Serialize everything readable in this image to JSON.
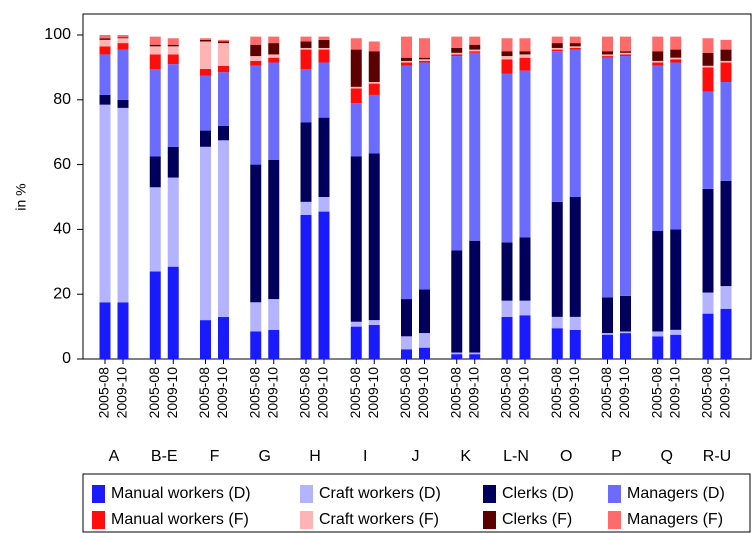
{
  "chart_data": {
    "type": "stacked_bar",
    "ylabel": "in %",
    "ylim": [
      0,
      100
    ],
    "yticks": [
      0,
      20,
      40,
      60,
      80,
      100
    ],
    "groups": [
      "A",
      "B-E",
      "F",
      "G",
      "H",
      "I",
      "J",
      "K",
      "L-N",
      "O",
      "P",
      "Q",
      "R-U"
    ],
    "categories": [
      "2005-08",
      "2009-10",
      "2005-08",
      "2009-10",
      "2005-08",
      "2009-10",
      "2005-08",
      "2009-10",
      "2005-08",
      "2009-10",
      "2005-08",
      "2009-10",
      "2005-08",
      "2009-10",
      "2005-08",
      "2009-10",
      "2005-08",
      "2009-10",
      "2005-08",
      "2009-10",
      "2005-08",
      "2009-10",
      "2005-08",
      "2009-10",
      "2005-08",
      "2009-10"
    ],
    "series": [
      {
        "name": "Manual workers (D)",
        "color": "#1a1aff",
        "values": [
          17.5,
          17.5,
          27,
          28.5,
          12,
          13,
          8.5,
          9,
          44.5,
          45.5,
          10,
          10.5,
          3,
          3.5,
          1.5,
          1.5,
          13,
          13.5,
          9.5,
          9,
          7.5,
          8,
          7,
          7.5,
          14,
          15.5
        ]
      },
      {
        "name": "Craft workers (D)",
        "color": "#b3b3ff",
        "values": [
          61,
          60,
          26,
          27.5,
          53.5,
          54.5,
          9,
          9.5,
          4,
          4.5,
          1.5,
          1.5,
          4,
          4.5,
          0.5,
          0.5,
          5,
          4.5,
          3.5,
          4,
          0.5,
          0.5,
          1.5,
          1.5,
          6.5,
          7
        ]
      },
      {
        "name": "Clerks (D)",
        "color": "#00005c",
        "values": [
          3,
          2.5,
          9.5,
          9.5,
          5,
          4.5,
          42.5,
          43,
          24.5,
          24.5,
          51,
          51.5,
          11.5,
          13.5,
          31.5,
          34.5,
          18,
          19.5,
          35.5,
          37,
          11,
          11,
          31,
          31,
          32,
          32.5
        ]
      },
      {
        "name": "Managers (D)",
        "color": "#6b6bff",
        "values": [
          12.5,
          15.5,
          27,
          25.5,
          17,
          16.5,
          30.5,
          30,
          16.5,
          17,
          16.5,
          18,
          72,
          70,
          60,
          58,
          52,
          51.5,
          46.5,
          45.5,
          74,
          74,
          51,
          51.5,
          30,
          30.5
        ]
      },
      {
        "name": "Manual workers (F)",
        "color": "#ff0d0d",
        "values": [
          2.5,
          2,
          4.5,
          3,
          2,
          2,
          1.5,
          1.5,
          6,
          4,
          4.5,
          3.5,
          1,
          0.5,
          0.5,
          0.5,
          4.5,
          4,
          0.5,
          0.5,
          0.5,
          0.5,
          1,
          1,
          7.5,
          6
        ]
      },
      {
        "name": "Craft workers (F)",
        "color": "#ffb3b3",
        "values": [
          2,
          1.5,
          2.5,
          2.5,
          8.5,
          7,
          1.5,
          1,
          0.5,
          0.5,
          0.5,
          0.5,
          0.5,
          0.5,
          0.5,
          0.5,
          1,
          1,
          0.5,
          0.5,
          0.5,
          0.5,
          0.5,
          0.5,
          0.5,
          0.5
        ]
      },
      {
        "name": "Clerks (F)",
        "color": "#5c0000",
        "values": [
          0.5,
          0.3,
          0.5,
          0.5,
          0.5,
          0.5,
          3.5,
          3.5,
          2,
          2.5,
          11.5,
          9.5,
          1,
          0.5,
          1.5,
          1.5,
          1.5,
          1,
          1.5,
          1,
          1,
          0.5,
          3,
          2.5,
          4,
          3.5
        ]
      },
      {
        "name": "Managers (F)",
        "color": "#ff6b6b",
        "values": [
          1,
          0.7,
          2.5,
          2,
          0.5,
          0.5,
          2.5,
          2,
          1.5,
          1,
          3.5,
          3,
          6.5,
          6,
          3.5,
          2.5,
          4,
          4,
          2,
          2,
          4.5,
          4.5,
          4.5,
          4,
          4.5,
          3
        ]
      }
    ]
  }
}
